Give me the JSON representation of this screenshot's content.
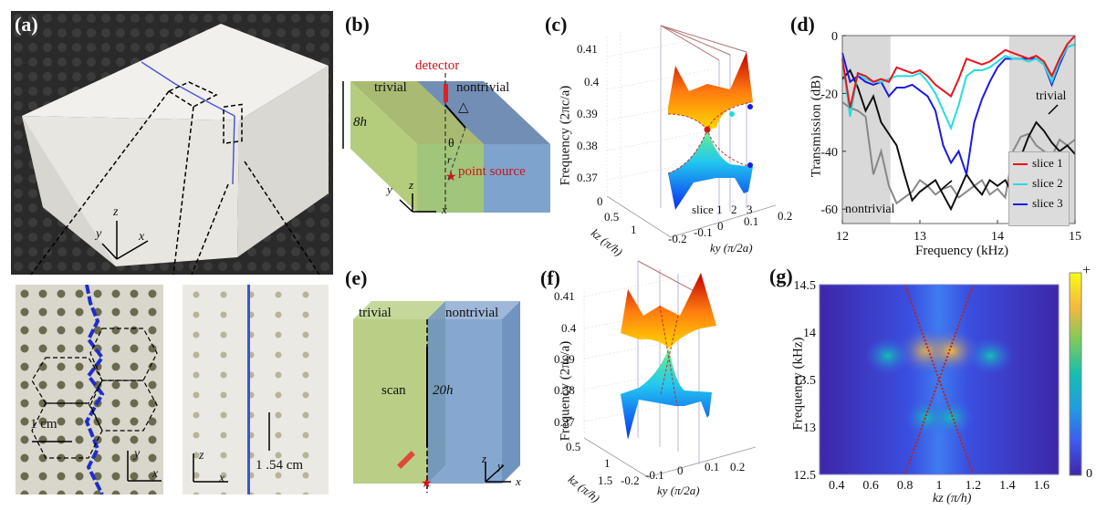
{
  "panels": {
    "a": {
      "label": "(a)",
      "axes": {
        "x": "x",
        "y": "y",
        "z": "z"
      },
      "inset_left": {
        "scale": "1 cm",
        "axes": {
          "x": "x",
          "y": "y"
        }
      },
      "inset_right": {
        "scale": "1 .54 cm",
        "axes": {
          "x": "x",
          "z": "z"
        }
      }
    },
    "b": {
      "label": "(b)",
      "detector": "detector",
      "trivial": "trivial",
      "nontrivial": "nontrivial",
      "height": "8h",
      "delta": "△",
      "theta": "θ",
      "r": "r",
      "source": "point source",
      "axes": {
        "x": "x",
        "y": "y",
        "z": "z"
      }
    },
    "c": {
      "label": "(c)",
      "ylabel": "Frequency (2πc/a)",
      "yticks": [
        "0.41",
        "0.4",
        "0.39",
        "0.38",
        "0.37"
      ],
      "kz_label": "kz (π/h)",
      "kz_ticks": [
        "0",
        "0.5",
        "1"
      ],
      "ky_label": "ky (π/2a)",
      "ky_ticks": [
        "-0.2",
        "-0.1",
        "0",
        "0.1",
        "0.2"
      ],
      "slices": [
        "slice 1",
        "2",
        "3"
      ]
    },
    "e": {
      "label": "(e)",
      "trivial": "trivial",
      "nontrivial": "nontrivial",
      "scan": "scan",
      "height": "20h",
      "axes": {
        "x": "x",
        "y": "y",
        "z": "z"
      }
    },
    "f": {
      "label": "(f)",
      "ylabel": "Frequency (2πc/a)",
      "yticks": [
        "0.41",
        "0.4",
        "0.39",
        "0.38",
        "0.37"
      ],
      "kz_label": "kz (π/h)",
      "kz_ticks": [
        "0.5",
        "1",
        "1.5"
      ],
      "ky_label": "ky (π/2a)",
      "ky_ticks": [
        "-0.2",
        "-0.1",
        "0",
        "0.1",
        "0.2"
      ]
    }
  },
  "chart_data": [
    {
      "id": "d",
      "label": "(d)",
      "type": "line",
      "title": "",
      "xlabel": "Frequency (kHz)",
      "ylabel": "Transmission (dB)",
      "xlim": [
        12,
        15
      ],
      "ylim": [
        -65,
        0
      ],
      "xticks": [
        "12",
        "13",
        "14",
        "15"
      ],
      "yticks": [
        "0",
        "-20",
        "-40",
        "-60"
      ],
      "shaded_bands_khz": [
        [
          12,
          12.62
        ],
        [
          14.15,
          15
        ]
      ],
      "legend_position": "bottom-right",
      "annotations": [
        "trivial",
        "nontrivial"
      ],
      "x": [
        12.0,
        12.1,
        12.2,
        12.3,
        12.4,
        12.5,
        12.6,
        12.7,
        12.8,
        12.9,
        13.0,
        13.1,
        13.2,
        13.3,
        13.4,
        13.5,
        13.6,
        13.7,
        13.8,
        13.9,
        14.0,
        14.1,
        14.2,
        14.3,
        14.4,
        14.5,
        14.6,
        14.7,
        14.8,
        14.9,
        15.0
      ],
      "series": [
        {
          "name": "slice 1",
          "color": "#e8141c",
          "values": [
            -8,
            -25,
            -13,
            -14,
            -16,
            -15,
            -16,
            -11,
            -12,
            -13,
            -12,
            -14,
            -17,
            -19,
            -21,
            -15,
            -8,
            -9,
            -10,
            -9,
            -7,
            -5,
            -6,
            -7,
            -8,
            -7,
            -9,
            -14,
            -8,
            -3,
            0
          ]
        },
        {
          "name": "slice 2",
          "color": "#22dede",
          "values": [
            -8,
            -28,
            -13,
            -15,
            -16,
            -16,
            -15,
            -14,
            -14,
            -14,
            -13,
            -16,
            -20,
            -26,
            -32,
            -24,
            -14,
            -12,
            -12,
            -11,
            -9,
            -7,
            -8,
            -8,
            -9,
            -8,
            -10,
            -16,
            -9,
            -4,
            -3
          ]
        },
        {
          "name": "slice 3",
          "color": "#1a1ae6",
          "values": [
            -6,
            -16,
            -14,
            -16,
            -17,
            -16,
            -21,
            -18,
            -18,
            -17,
            -19,
            -21,
            -26,
            -38,
            -44,
            -40,
            -48,
            -30,
            -22,
            -16,
            -11,
            -8,
            -8,
            -8,
            -8,
            -8,
            -10,
            -17,
            -10,
            -4,
            -3
          ]
        },
        {
          "name": "trivial",
          "color": "#111111",
          "values": [
            -15,
            -12,
            -18,
            -26,
            -21,
            -30,
            -34,
            -38,
            -48,
            -57,
            -54,
            -52,
            -50,
            -55,
            -60,
            -54,
            -48,
            -52,
            -55,
            -50,
            -52,
            -50,
            -55,
            -42,
            -35,
            -30,
            -33,
            -37,
            -40,
            -38,
            -41
          ]
        },
        {
          "name": "nontrivial",
          "color": "#888888",
          "values": [
            -23,
            -25,
            -26,
            -28,
            -48,
            -40,
            -52,
            -58,
            -56,
            -54,
            -50,
            -52,
            -55,
            -53,
            -52,
            -56,
            -54,
            -52,
            -50,
            -55,
            -53,
            -56,
            -40,
            -35,
            -34,
            -38,
            -40,
            -42,
            -36,
            -38,
            -36
          ]
        }
      ]
    },
    {
      "id": "g",
      "label": "(g)",
      "type": "heatmap",
      "title": "",
      "xlabel": "kz (π/h)",
      "ylabel": "Frequency (kHz)",
      "xlim": [
        0.3,
        1.7
      ],
      "ylim": [
        12.5,
        14.5
      ],
      "xticks": [
        "0.4",
        "0.6",
        "0.8",
        "1",
        "1.2",
        "1.4",
        "1.6"
      ],
      "yticks": [
        "14.5",
        "14",
        "13.5",
        "13",
        "12.5"
      ],
      "colorbar": {
        "max_label": "+",
        "min_label": "0",
        "colors": [
          "#3e26a8",
          "#3d5cf0",
          "#1f9de0",
          "#14bfb3",
          "#7dca5a",
          "#f5b93c",
          "#f9fb15"
        ]
      },
      "hotspots": [
        {
          "kz": 0.93,
          "freq": 13.8,
          "intensity": 0.85
        },
        {
          "kz": 1.07,
          "freq": 13.8,
          "intensity": 0.8
        },
        {
          "kz": 0.7,
          "freq": 13.75,
          "intensity": 0.45
        },
        {
          "kz": 1.3,
          "freq": 13.75,
          "intensity": 0.45
        },
        {
          "kz": 0.93,
          "freq": 13.1,
          "intensity": 0.45
        },
        {
          "kz": 1.07,
          "freq": 13.1,
          "intensity": 0.45
        }
      ],
      "dispersion_lines": [
        {
          "kz": [
            0.8,
            1.0,
            1.2
          ],
          "freq": [
            12.5,
            13.5,
            14.5
          ]
        },
        {
          "kz": [
            0.8,
            1.0,
            1.2
          ],
          "freq": [
            14.5,
            13.5,
            12.5
          ]
        }
      ]
    }
  ]
}
